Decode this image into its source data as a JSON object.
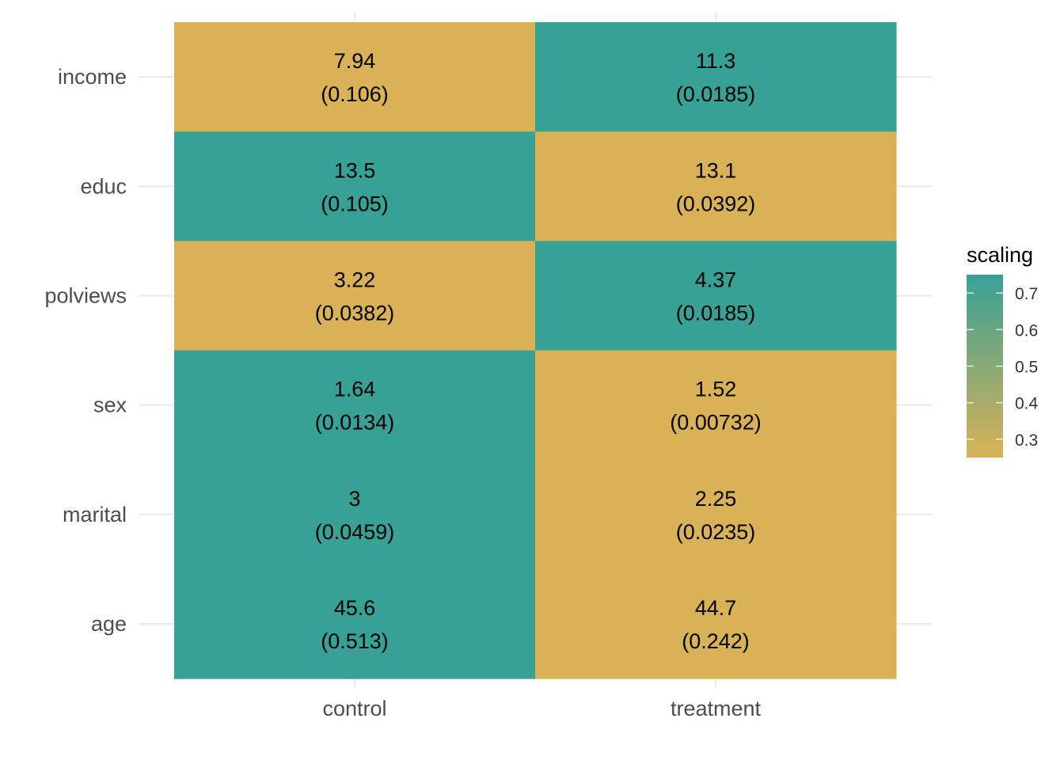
{
  "chart_data": {
    "type": "heatmap",
    "x_categories": [
      "control",
      "treatment"
    ],
    "y_categories": [
      "age",
      "marital",
      "sex",
      "polviews",
      "educ",
      "income"
    ],
    "cells": [
      {
        "x": "control",
        "y": "income",
        "value": "7.94",
        "sub": "(0.106)",
        "scaling": 0.25
      },
      {
        "x": "treatment",
        "y": "income",
        "value": "11.3",
        "sub": "(0.0185)",
        "scaling": 0.75
      },
      {
        "x": "control",
        "y": "educ",
        "value": "13.5",
        "sub": "(0.105)",
        "scaling": 0.75
      },
      {
        "x": "treatment",
        "y": "educ",
        "value": "13.1",
        "sub": "(0.0392)",
        "scaling": 0.25
      },
      {
        "x": "control",
        "y": "polviews",
        "value": "3.22",
        "sub": "(0.0382)",
        "scaling": 0.25
      },
      {
        "x": "treatment",
        "y": "polviews",
        "value": "4.37",
        "sub": "(0.0185)",
        "scaling": 0.75
      },
      {
        "x": "control",
        "y": "sex",
        "value": "1.64",
        "sub": "(0.0134)",
        "scaling": 0.75
      },
      {
        "x": "treatment",
        "y": "sex",
        "value": "1.52",
        "sub": "(0.00732)",
        "scaling": 0.25
      },
      {
        "x": "control",
        "y": "marital",
        "value": "3",
        "sub": "(0.0459)",
        "scaling": 0.75
      },
      {
        "x": "treatment",
        "y": "marital",
        "value": "2.25",
        "sub": "(0.0235)",
        "scaling": 0.25
      },
      {
        "x": "control",
        "y": "age",
        "value": "45.6",
        "sub": "(0.513)",
        "scaling": 0.75
      },
      {
        "x": "treatment",
        "y": "age",
        "value": "44.7",
        "sub": "(0.242)",
        "scaling": 0.25
      }
    ],
    "legend": {
      "title": "scaling",
      "ticks": [
        0.3,
        0.4,
        0.5,
        0.6,
        0.7
      ],
      "tick_labels": [
        "0.3",
        "0.4",
        "0.5",
        "0.6",
        "0.7"
      ],
      "range": [
        0.25,
        0.75
      ],
      "low_color": "#D9B257",
      "high_color": "#37A195",
      "position": "right"
    },
    "grid": true
  }
}
